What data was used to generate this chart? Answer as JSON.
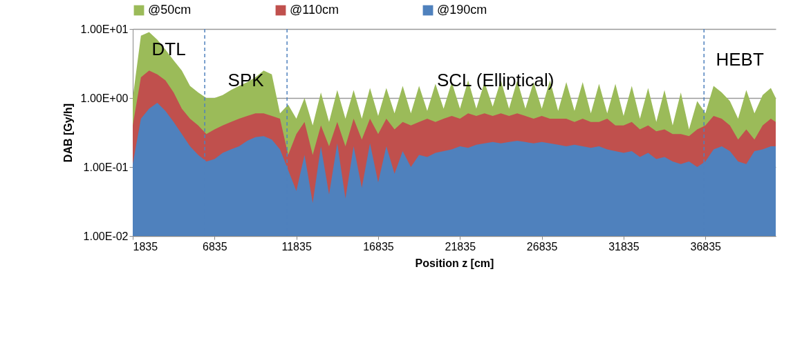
{
  "chart_data": {
    "type": "area",
    "xlabel": "Position z [cm]",
    "ylabel": "DAB [Gy/h]",
    "log": "y",
    "grid": "y",
    "legend": "top",
    "xlim": [
      1835,
      41135
    ],
    "xticks": [
      1835,
      6835,
      11835,
      16835,
      21835,
      26835,
      31835,
      36835
    ],
    "ylim": [
      0.01,
      10
    ],
    "yticks": [
      {
        "value": 0.01,
        "label": "1.00E-02"
      },
      {
        "value": 0.1,
        "label": "1.00E-01"
      },
      {
        "value": 1,
        "label": "1.00E+00"
      },
      {
        "value": 10,
        "label": "1.00E+01"
      }
    ],
    "x": [
      1835,
      2335,
      2835,
      3335,
      3835,
      4335,
      4835,
      5335,
      5835,
      6335,
      6835,
      7335,
      7835,
      8335,
      8835,
      9335,
      9835,
      10335,
      10835,
      11335,
      11835,
      12335,
      12835,
      13335,
      13835,
      14335,
      14835,
      15335,
      15835,
      16335,
      16835,
      17335,
      17835,
      18335,
      18835,
      19335,
      19835,
      20335,
      20835,
      21335,
      21835,
      22335,
      22835,
      23335,
      23835,
      24335,
      24835,
      25335,
      25835,
      26335,
      26835,
      27335,
      27835,
      28335,
      28835,
      29335,
      29835,
      30335,
      30835,
      31335,
      31835,
      32335,
      32835,
      33335,
      33835,
      34335,
      34835,
      35335,
      35835,
      36335,
      36835,
      37335,
      37835,
      38335,
      38835,
      39335,
      39835,
      40335,
      40835,
      41135
    ],
    "series": [
      {
        "name": "@50cm",
        "color": "#9bbb59",
        "values": [
          1.0,
          8,
          9,
          7,
          5,
          3.5,
          2.5,
          1.5,
          1.2,
          1.0,
          1.0,
          1.1,
          1.3,
          1.5,
          1.7,
          2.0,
          2.5,
          2.2,
          0.6,
          0.8,
          0.5,
          1.0,
          0.4,
          1.2,
          0.45,
          1.3,
          0.5,
          1.3,
          0.5,
          1.4,
          0.55,
          1.4,
          0.6,
          1.5,
          0.6,
          1.5,
          0.65,
          1.6,
          0.7,
          1.7,
          0.7,
          1.8,
          0.7,
          1.7,
          0.75,
          1.8,
          0.7,
          1.8,
          0.7,
          1.7,
          0.7,
          1.8,
          0.65,
          1.7,
          0.65,
          1.7,
          0.6,
          1.6,
          0.6,
          1.6,
          0.55,
          1.5,
          0.5,
          1.4,
          0.45,
          1.3,
          0.4,
          1.2,
          0.35,
          0.9,
          0.6,
          1.5,
          1.2,
          0.9,
          0.5,
          1.3,
          0.6,
          1.1,
          1.4,
          1.0
        ]
      },
      {
        "name": "@110cm",
        "color": "#c0504d",
        "values": [
          0.4,
          2.0,
          2.5,
          2.2,
          1.8,
          1.2,
          0.7,
          0.5,
          0.4,
          0.3,
          0.35,
          0.4,
          0.45,
          0.5,
          0.55,
          0.6,
          0.6,
          0.55,
          0.5,
          0.15,
          0.3,
          0.45,
          0.15,
          0.4,
          0.2,
          0.45,
          0.2,
          0.5,
          0.25,
          0.5,
          0.3,
          0.5,
          0.35,
          0.45,
          0.4,
          0.45,
          0.5,
          0.45,
          0.5,
          0.55,
          0.5,
          0.6,
          0.55,
          0.6,
          0.55,
          0.6,
          0.55,
          0.6,
          0.55,
          0.5,
          0.55,
          0.5,
          0.5,
          0.5,
          0.45,
          0.5,
          0.45,
          0.45,
          0.5,
          0.4,
          0.4,
          0.45,
          0.35,
          0.4,
          0.33,
          0.35,
          0.3,
          0.3,
          0.28,
          0.35,
          0.4,
          0.55,
          0.5,
          0.4,
          0.25,
          0.35,
          0.25,
          0.4,
          0.5,
          0.45
        ]
      },
      {
        "name": "@190cm",
        "color": "#4f81bd",
        "values": [
          0.11,
          0.5,
          0.7,
          0.85,
          0.65,
          0.45,
          0.3,
          0.2,
          0.15,
          0.12,
          0.13,
          0.16,
          0.18,
          0.2,
          0.24,
          0.27,
          0.28,
          0.25,
          0.18,
          0.09,
          0.045,
          0.15,
          0.03,
          0.2,
          0.04,
          0.22,
          0.035,
          0.2,
          0.05,
          0.22,
          0.06,
          0.2,
          0.08,
          0.17,
          0.1,
          0.15,
          0.14,
          0.16,
          0.17,
          0.18,
          0.2,
          0.19,
          0.21,
          0.22,
          0.23,
          0.22,
          0.23,
          0.24,
          0.23,
          0.22,
          0.23,
          0.22,
          0.21,
          0.2,
          0.21,
          0.2,
          0.19,
          0.2,
          0.18,
          0.17,
          0.16,
          0.17,
          0.14,
          0.16,
          0.13,
          0.14,
          0.12,
          0.11,
          0.12,
          0.1,
          0.12,
          0.18,
          0.2,
          0.17,
          0.12,
          0.11,
          0.17,
          0.18,
          0.2,
          0.2
        ]
      }
    ],
    "ref_lines": [
      {
        "axis": "x",
        "value": 6235,
        "color": "#4f81bd",
        "line_style": "dashed"
      },
      {
        "axis": "x",
        "value": 11265,
        "color": "#4f81bd",
        "line_style": "dashed"
      },
      {
        "axis": "x",
        "value": 36750,
        "color": "#4f81bd",
        "line_style": "dashed"
      }
    ],
    "annotations": [
      "DTL",
      "SPK",
      "SCL (Elliptical)",
      "HEBT"
    ]
  }
}
